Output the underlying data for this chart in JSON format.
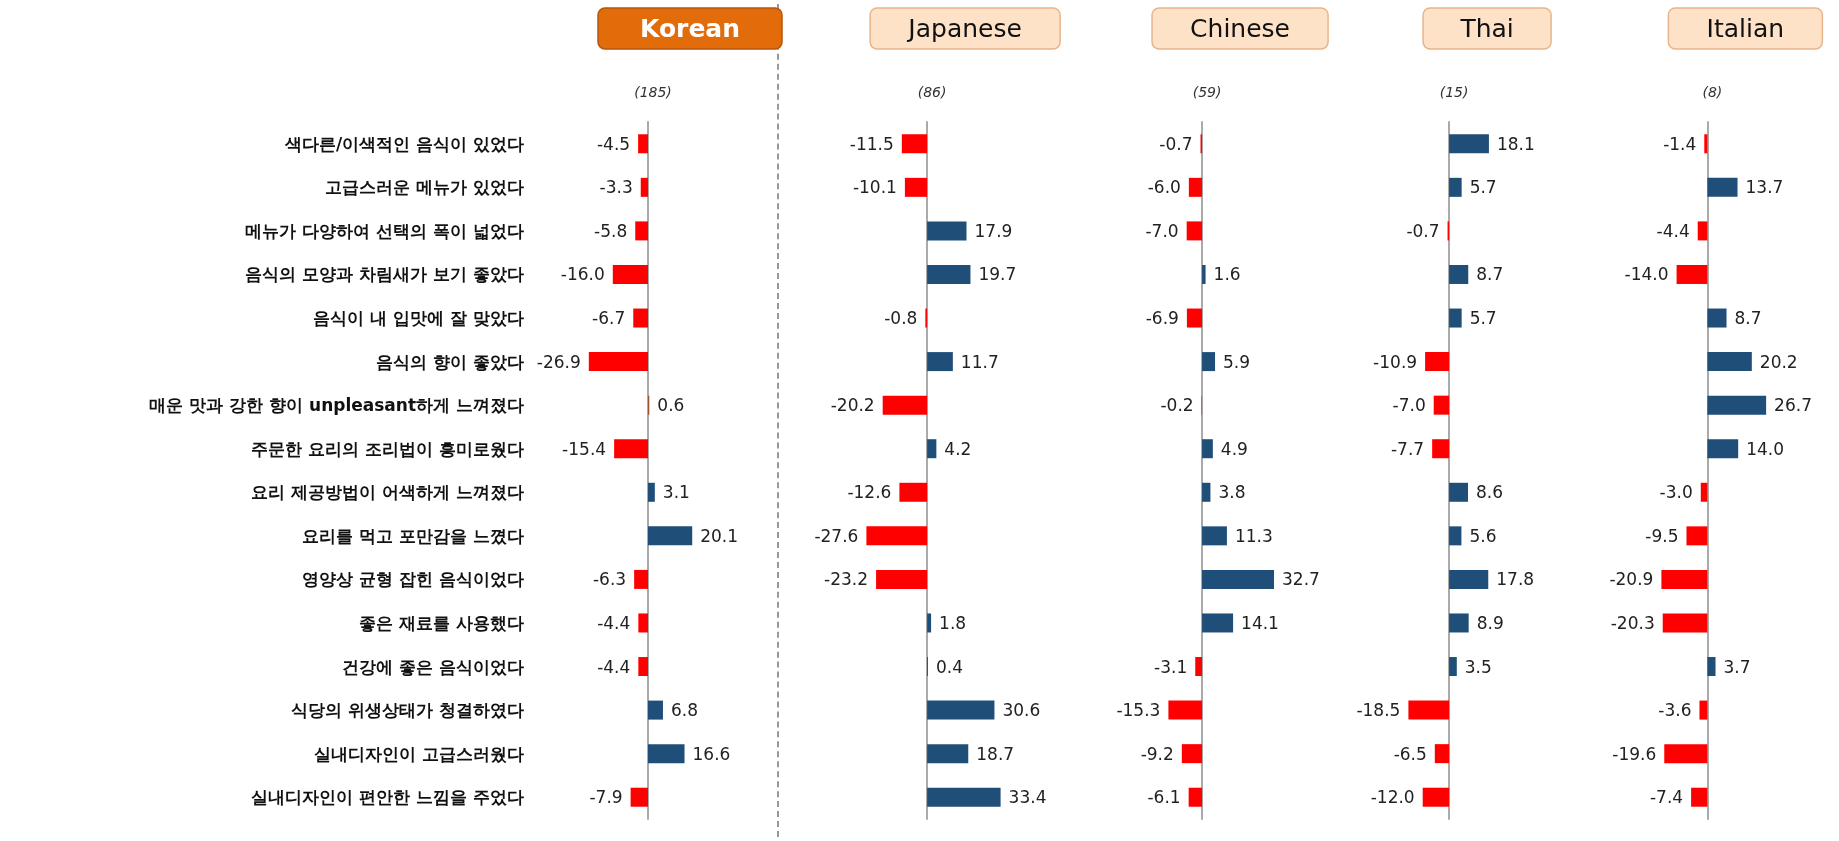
{
  "chart_data": [
    {
      "type": "bar",
      "orientation": "horizontal",
      "title": "Korean",
      "subtitle": "(185)",
      "tick_labels": "y",
      "categories": [
        "색다른/이색적인 음식이 있었다",
        "고급스러운 메뉴가 있었다",
        "메뉴가 다양하여 선택의 폭이 넓었다",
        "음식의 모양과 차림새가 보기 좋았다",
        "음식이 내 입맛에 잘 맞았다",
        "음식의 향이 좋았다",
        "매운 맛과 강한 향이 unpleasant하게 느껴졌다",
        "주문한 요리의 조리법이 흥미로웠다",
        "요리 제공방법이 어색하게 느껴졌다",
        "요리를 먹고 포만감을 느꼈다",
        "영양상 균형 잡힌 음식이었다",
        "좋은 재료를 사용했다",
        "건강에 좋은 음식이었다",
        "식당의 위생상태가 청결하였다",
        "실내디자인이 고급스러웠다",
        "실내디자인이 편안한 느낌을 주었다"
      ],
      "values": [
        -4.5,
        -3.3,
        -5.8,
        -16.0,
        -6.7,
        -26.9,
        0.6,
        -15.4,
        3.1,
        20.1,
        -6.3,
        -4.4,
        -4.4,
        6.8,
        16.6,
        -7.9
      ],
      "value_labels": [
        "-4.5",
        "-3.3",
        "-5.8",
        "-16.0",
        "-6.7",
        "-26.9",
        "0.6",
        "-15.4",
        "3.1",
        "20.1",
        "-6.3",
        "-4.4",
        "-4.4",
        "6.8",
        "16.6",
        "-7.9"
      ],
      "colors": [
        "#ff0000",
        "#ff0000",
        "#ff0000",
        "#ff0000",
        "#ff0000",
        "#ff0000",
        "#a0522d",
        "#ff0000",
        "#1f4e79",
        "#1f4e79",
        "#ff0000",
        "#ff0000",
        "#ff0000",
        "#1f4e79",
        "#1f4e79",
        "#ff0000"
      ]
    },
    {
      "type": "bar",
      "orientation": "horizontal",
      "title": "Japanese",
      "subtitle": "(86)",
      "tick_labels": false,
      "values": [
        -11.5,
        -10.1,
        17.9,
        19.7,
        -0.8,
        11.7,
        -20.2,
        4.2,
        -12.6,
        -27.6,
        -23.2,
        1.8,
        0.4,
        30.6,
        18.7,
        33.4
      ],
      "value_labels": [
        "-11.5",
        "-10.1",
        "17.9",
        "19.7",
        "-0.8",
        "11.7",
        "-20.2",
        "4.2",
        "-12.6",
        "-27.6",
        "-23.2",
        "1.8",
        "0.4",
        "30.6",
        "18.7",
        "33.4"
      ],
      "colors": [
        "#ff0000",
        "#ff0000",
        "#1f4e79",
        "#1f4e79",
        "#ff0000",
        "#1f4e79",
        "#ff0000",
        "#1f4e79",
        "#ff0000",
        "#ff0000",
        "#ff0000",
        "#1f4e79",
        "#1f4e79",
        "#1f4e79",
        "#1f4e79",
        "#1f4e79"
      ]
    },
    {
      "type": "bar",
      "orientation": "horizontal",
      "title": "Chinese",
      "subtitle": "(59)",
      "tick_labels": false,
      "values": [
        -0.7,
        -6.0,
        -7.0,
        1.6,
        -6.9,
        5.9,
        -0.2,
        4.9,
        3.8,
        11.3,
        32.7,
        14.1,
        -3.1,
        -15.3,
        -9.2,
        -6.1
      ],
      "value_labels": [
        "-0.7",
        "-6.0",
        "-7.0",
        "1.6",
        "-6.9",
        "5.9",
        "-0.2",
        "4.9",
        "3.8",
        "11.3",
        "32.7",
        "14.1",
        "-3.1",
        "-15.3",
        "-9.2",
        "-6.1"
      ],
      "colors": [
        "#ff0000",
        "#ff0000",
        "#ff0000",
        "#1f4e79",
        "#ff0000",
        "#1f4e79",
        "#ff0000",
        "#1f4e79",
        "#1f4e79",
        "#1f4e79",
        "#1f4e79",
        "#1f4e79",
        "#ff0000",
        "#ff0000",
        "#ff0000",
        "#ff0000"
      ]
    },
    {
      "type": "bar",
      "orientation": "horizontal",
      "title": "Thai",
      "subtitle": "(15)",
      "tick_labels": false,
      "values": [
        18.1,
        5.7,
        -0.7,
        8.7,
        5.7,
        -10.9,
        -7.0,
        -7.7,
        8.6,
        5.6,
        17.8,
        8.9,
        3.5,
        -18.5,
        -6.5,
        -12.0
      ],
      "value_labels": [
        "18.1",
        "5.7",
        "-0.7",
        "8.7",
        "5.7",
        "-10.9",
        "-7.0",
        "-7.7",
        "8.6",
        "5.6",
        "17.8",
        "8.9",
        "3.5",
        "-18.5",
        "-6.5",
        "-12.0"
      ],
      "colors": [
        "#1f4e79",
        "#1f4e79",
        "#ff0000",
        "#1f4e79",
        "#1f4e79",
        "#ff0000",
        "#ff0000",
        "#ff0000",
        "#1f4e79",
        "#1f4e79",
        "#1f4e79",
        "#1f4e79",
        "#1f4e79",
        "#ff0000",
        "#ff0000",
        "#ff0000"
      ]
    },
    {
      "type": "bar",
      "orientation": "horizontal",
      "title": "Italian",
      "subtitle": "(8)",
      "tick_labels": false,
      "values": [
        -1.4,
        13.7,
        -4.4,
        -14.0,
        8.7,
        20.2,
        26.7,
        14.0,
        -3.0,
        -9.5,
        -20.9,
        -20.3,
        3.7,
        -3.6,
        -19.6,
        -7.4
      ],
      "value_labels": [
        "-1.4",
        "13.7",
        "-4.4",
        "-14.0",
        "8.7",
        "20.2",
        "26.7",
        "14.0",
        "-3.0",
        "-9.5",
        "-20.9",
        "-20.3",
        "3.7",
        "-3.6",
        "-19.6",
        "-7.4"
      ],
      "colors": [
        "#ff0000",
        "#1f4e79",
        "#ff0000",
        "#ff0000",
        "#1f4e79",
        "#1f4e79",
        "#1f4e79",
        "#1f4e79",
        "#ff0000",
        "#ff0000",
        "#ff0000",
        "#ff0000",
        "#1f4e79",
        "#ff0000",
        "#ff0000",
        "#ff0000"
      ]
    }
  ]
}
